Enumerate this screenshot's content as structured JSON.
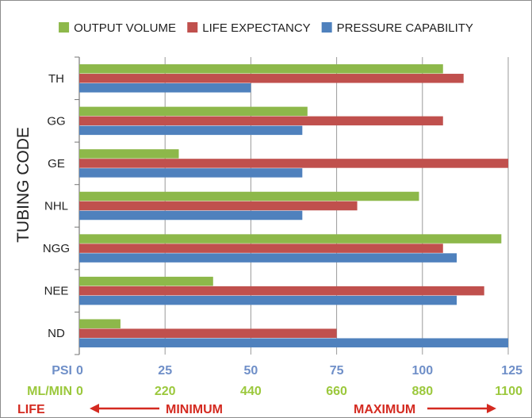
{
  "chart_data": {
    "type": "bar",
    "orientation": "horizontal",
    "title": "",
    "ylabel": "TUBING CODE",
    "categories": [
      "TH",
      "GG",
      "GE",
      "NHL",
      "NGG",
      "NEE",
      "ND"
    ],
    "series": [
      {
        "name": "OUTPUT VOLUME",
        "color": "#8DB84A",
        "values": [
          106,
          66.5,
          29,
          99,
          123,
          39,
          12
        ]
      },
      {
        "name": "LIFE EXPECTANCY",
        "color": "#C0504D",
        "values": [
          112,
          106,
          125,
          81,
          106,
          118,
          75
        ]
      },
      {
        "name": "PRESSURE CAPABILITY",
        "color": "#4F81BD",
        "values": [
          50,
          65,
          65,
          65,
          110,
          110,
          125
        ]
      }
    ],
    "xlim": [
      0,
      125
    ],
    "grid": true,
    "legend": "top",
    "axes": [
      {
        "label": "PSI",
        "color": "#6F8FC8",
        "ticks": [
          "0",
          "25",
          "50",
          "75",
          "100",
          "125"
        ]
      },
      {
        "label": "ML/MIN",
        "color": "#9BC83C",
        "ticks": [
          "0",
          "220",
          "440",
          "660",
          "880",
          "1100"
        ]
      }
    ],
    "life_scale": {
      "label": "LIFE",
      "min_label": "MINIMUM",
      "max_label": "MAXIMUM",
      "color": "#D42A20"
    }
  }
}
